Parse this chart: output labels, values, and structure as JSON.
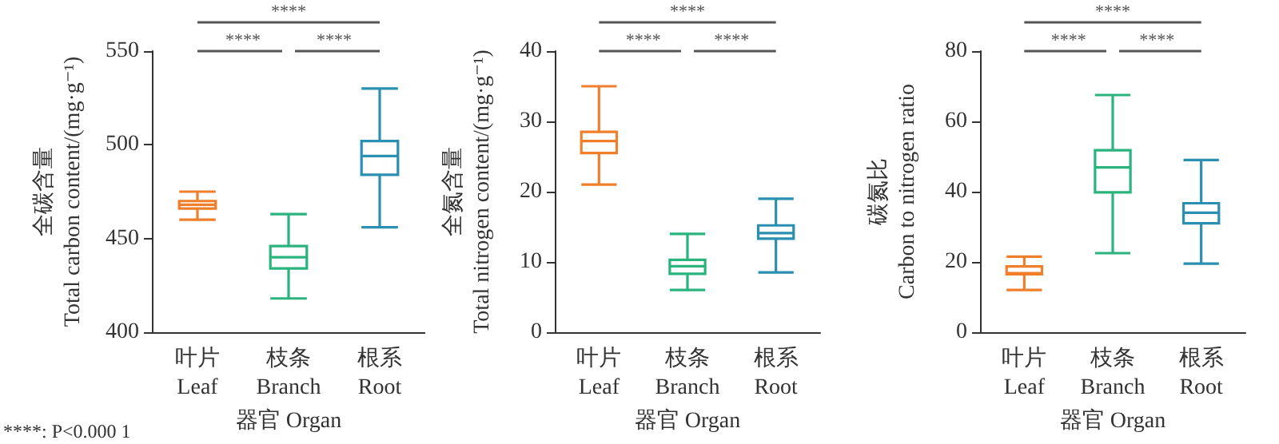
{
  "chart_data": [
    {
      "type": "box",
      "ylabel": "全碳含量\nTotal carbon content/(mg·g⁻¹)",
      "xlabel": "器官 Organ",
      "categories": [
        "叶片\nLeaf",
        "枝条\nBranch",
        "根系\nRoot"
      ],
      "colors": [
        "#f07f2c",
        "#2bb37d",
        "#2a8fb0"
      ],
      "boxes": [
        {
          "low": 460,
          "q1": 466,
          "median": 468,
          "q3": 470,
          "high": 475
        },
        {
          "low": 418,
          "q1": 434,
          "median": 440,
          "q3": 446,
          "high": 463
        },
        {
          "low": 456,
          "q1": 484,
          "median": 494,
          "q3": 502,
          "high": 530
        }
      ],
      "ylim": [
        400,
        550
      ],
      "yticks": [
        400,
        450,
        500,
        550
      ],
      "grid": false,
      "annotations": [
        "****",
        "****",
        "****",
        "****: P<0.000 1"
      ]
    },
    {
      "type": "box",
      "ylabel": "全氮含量\nTotal nitrogen content/(mg·g⁻¹)",
      "xlabel": "器官 Organ",
      "categories": [
        "叶片\nLeaf",
        "枝条\nBranch",
        "根系\nRoot"
      ],
      "colors": [
        "#f07f2c",
        "#2bb37d",
        "#2a8fb0"
      ],
      "boxes": [
        {
          "low": 21,
          "q1": 25.5,
          "median": 27.2,
          "q3": 28.5,
          "high": 35
        },
        {
          "low": 6,
          "q1": 8.3,
          "median": 9.4,
          "q3": 10.3,
          "high": 14
        },
        {
          "low": 8.5,
          "q1": 13.3,
          "median": 14.1,
          "q3": 15.2,
          "high": 19
        }
      ],
      "ylim": [
        0,
        40
      ],
      "yticks": [
        0,
        10,
        20,
        30,
        40
      ],
      "grid": false,
      "annotations": [
        "****",
        "****",
        "****"
      ]
    },
    {
      "type": "box",
      "ylabel": "碳氮比\nCarbon to nitrogen ratio",
      "xlabel": "器官 Organ",
      "categories": [
        "叶片\nLeaf",
        "枝条\nBranch",
        "根系\nRoot"
      ],
      "colors": [
        "#f07f2c",
        "#2bb37d",
        "#2a8fb0"
      ],
      "boxes": [
        {
          "low": 12,
          "q1": 16.5,
          "median": 16.8,
          "q3": 18.7,
          "high": 21.5
        },
        {
          "low": 22.5,
          "q1": 39.8,
          "median": 46.9,
          "q3": 51.8,
          "high": 67.5
        },
        {
          "low": 19.5,
          "q1": 31,
          "median": 34,
          "q3": 36.7,
          "high": 49
        }
      ],
      "ylim": [
        0,
        80
      ],
      "yticks": [
        0,
        20,
        40,
        60,
        80
      ],
      "grid": false,
      "annotations": [
        "****",
        "****",
        "****"
      ]
    }
  ]
}
